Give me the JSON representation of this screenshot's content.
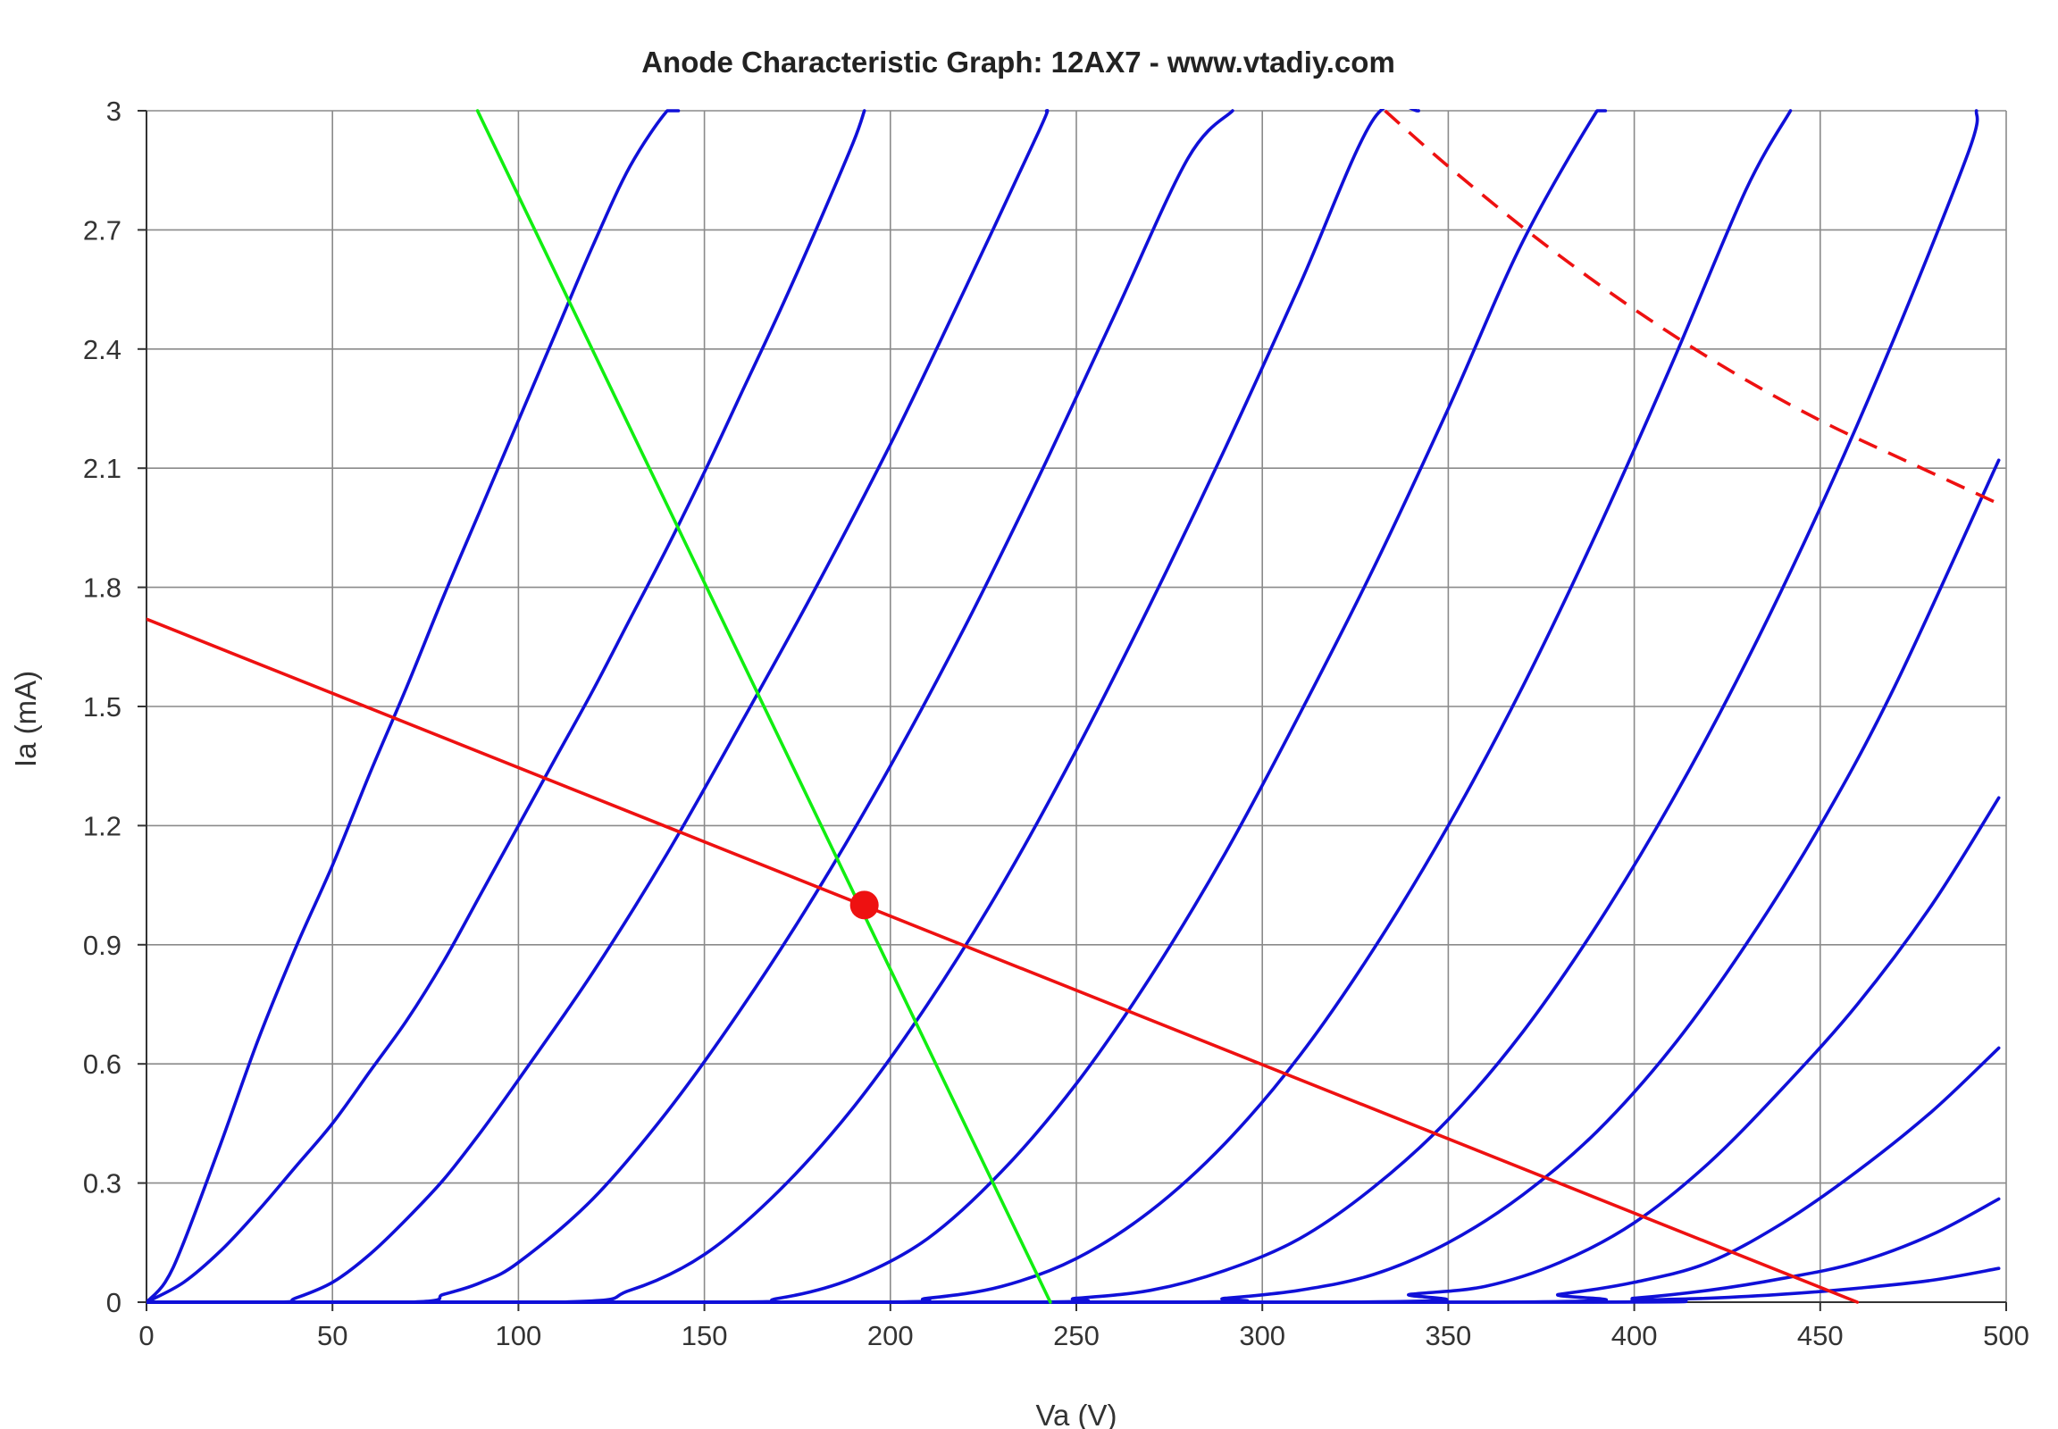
{
  "chart_data": {
    "type": "line",
    "title": "Anode Characteristic Graph: 12AX7 - www.vtadiy.com",
    "xlabel": "Va (V)",
    "ylabel": "Ia (mA)",
    "xlim": [
      0,
      500
    ],
    "ylim": [
      0,
      3
    ],
    "x_ticks": [
      "0",
      "50",
      "100",
      "150",
      "200",
      "250",
      "300",
      "350",
      "400",
      "450",
      "500"
    ],
    "y_ticks": [
      "0",
      "0.3",
      "0.6",
      "0.9",
      "1.2",
      "1.5",
      "1.8",
      "2.1",
      "2.4",
      "2.7",
      "3"
    ],
    "grid": true,
    "colors": {
      "anode_curves": "#1010d8",
      "load_line": "#ee1111",
      "operating_point": "#ee1111",
      "cathode_load_line": "#11ee11",
      "max_dissipation": "#ee1111",
      "grid": "#8a8a8a"
    },
    "series": [
      {
        "kind": "anode-curve",
        "x": [
          0,
          5,
          10,
          20,
          30,
          40,
          50,
          60,
          70,
          80,
          90,
          100,
          110,
          120,
          130,
          140,
          143
        ],
        "y": [
          0,
          0.05,
          0.15,
          0.4,
          0.66,
          0.89,
          1.1,
          1.33,
          1.55,
          1.78,
          2.0,
          2.22,
          2.44,
          2.66,
          2.86,
          3.0,
          3.0
        ]
      },
      {
        "kind": "anode-curve",
        "x": [
          0,
          10,
          20,
          30,
          40,
          50,
          60,
          70,
          80,
          90,
          100,
          110,
          120,
          130,
          140,
          150,
          160,
          170,
          180,
          190,
          193
        ],
        "y": [
          0,
          0.05,
          0.13,
          0.23,
          0.34,
          0.45,
          0.58,
          0.71,
          0.86,
          1.03,
          1.2,
          1.37,
          1.54,
          1.72,
          1.9,
          2.09,
          2.29,
          2.49,
          2.7,
          2.92,
          3.0
        ]
      },
      {
        "kind": "anode-curve",
        "x": [
          0,
          35,
          40,
          50,
          60,
          70,
          80,
          90,
          100,
          120,
          140,
          160,
          180,
          200,
          220,
          240,
          242
        ],
        "y": [
          0,
          0,
          0.01,
          0.05,
          0.12,
          0.21,
          0.31,
          0.43,
          0.56,
          0.83,
          1.13,
          1.46,
          1.8,
          2.16,
          2.55,
          2.95,
          3.0
        ]
      },
      {
        "kind": "anode-curve",
        "x": [
          0,
          70,
          80,
          90,
          100,
          120,
          140,
          160,
          180,
          200,
          220,
          240,
          260,
          280,
          292
        ],
        "y": [
          0,
          0,
          0.02,
          0.05,
          0.1,
          0.26,
          0.48,
          0.74,
          1.03,
          1.35,
          1.7,
          2.08,
          2.48,
          2.88,
          3.0
        ]
      },
      {
        "kind": "anode-curve",
        "x": [
          0,
          110,
          130,
          150,
          170,
          190,
          210,
          230,
          250,
          270,
          290,
          310,
          330,
          342
        ],
        "y": [
          0,
          0,
          0.03,
          0.12,
          0.28,
          0.49,
          0.75,
          1.05,
          1.39,
          1.76,
          2.15,
          2.56,
          2.98,
          3.0
        ]
      },
      {
        "kind": "anode-curve",
        "x": [
          0,
          150,
          170,
          190,
          210,
          230,
          250,
          270,
          290,
          310,
          330,
          350,
          370,
          390,
          392
        ],
        "y": [
          0,
          0,
          0.01,
          0.06,
          0.16,
          0.33,
          0.55,
          0.82,
          1.13,
          1.48,
          1.85,
          2.25,
          2.67,
          3.0,
          3.0
        ]
      },
      {
        "kind": "anode-curve",
        "x": [
          0,
          190,
          210,
          230,
          250,
          270,
          290,
          310,
          330,
          350,
          370,
          390,
          410,
          430,
          442
        ],
        "y": [
          0,
          0,
          0.01,
          0.04,
          0.11,
          0.23,
          0.4,
          0.62,
          0.89,
          1.2,
          1.55,
          1.94,
          2.36,
          2.8,
          3.0
        ]
      },
      {
        "kind": "anode-curve",
        "x": [
          0,
          230,
          250,
          270,
          290,
          310,
          330,
          350,
          370,
          390,
          410,
          430,
          450,
          470,
          490,
          492
        ],
        "y": [
          0,
          0,
          0.01,
          0.03,
          0.08,
          0.16,
          0.29,
          0.46,
          0.68,
          0.95,
          1.26,
          1.61,
          2.0,
          2.43,
          2.9,
          3.0
        ]
      },
      {
        "kind": "anode-curve",
        "x": [
          0,
          270,
          290,
          310,
          330,
          350,
          370,
          390,
          410,
          430,
          450,
          470,
          498
        ],
        "y": [
          0,
          0,
          0.01,
          0.03,
          0.07,
          0.15,
          0.27,
          0.43,
          0.64,
          0.9,
          1.2,
          1.55,
          2.12
        ]
      },
      {
        "kind": "anode-curve",
        "x": [
          0,
          320,
          340,
          360,
          380,
          400,
          420,
          440,
          460,
          480,
          498
        ],
        "y": [
          0,
          0,
          0.02,
          0.04,
          0.1,
          0.2,
          0.35,
          0.54,
          0.75,
          1.0,
          1.27
        ]
      },
      {
        "kind": "anode-curve",
        "x": [
          0,
          360,
          380,
          400,
          420,
          440,
          460,
          480,
          498
        ],
        "y": [
          0,
          0,
          0.02,
          0.05,
          0.1,
          0.2,
          0.33,
          0.48,
          0.64
        ]
      },
      {
        "kind": "anode-curve",
        "x": [
          0,
          380,
          400,
          420,
          440,
          460,
          480,
          498
        ],
        "y": [
          0,
          0,
          0.01,
          0.03,
          0.06,
          0.1,
          0.17,
          0.26
        ]
      },
      {
        "kind": "anode-curve",
        "x": [
          0,
          380,
          400,
          420,
          440,
          460,
          480,
          498
        ],
        "y": [
          0,
          0,
          0.005,
          0.01,
          0.02,
          0.035,
          0.055,
          0.085
        ]
      },
      {
        "kind": "load-line",
        "x": [
          0,
          460
        ],
        "y": [
          1.72,
          0
        ]
      },
      {
        "kind": "cathode-load-line",
        "x": [
          89,
          243
        ],
        "y": [
          3.0,
          0
        ]
      },
      {
        "kind": "max-dissipation",
        "x": [
          333,
          350,
          375,
          400,
          425,
          450,
          475,
          498
        ],
        "y": [
          3.0,
          2.86,
          2.67,
          2.5,
          2.35,
          2.22,
          2.11,
          2.01
        ]
      }
    ],
    "operating_point": {
      "x": 193,
      "y": 1.0
    }
  }
}
